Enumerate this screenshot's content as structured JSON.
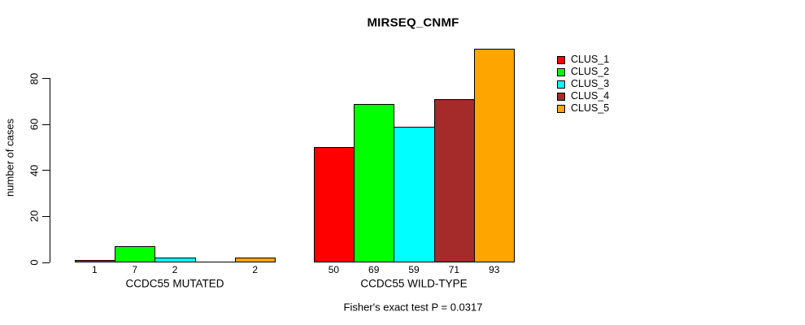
{
  "chart_data": {
    "type": "bar",
    "title": "MIRSEQ_CNMF",
    "ylabel": "number of cases",
    "xlabel": "",
    "annotation": "Fisher's exact test P = 0.0317",
    "yticks": [
      0,
      20,
      40,
      60,
      80
    ],
    "ylim": [
      0,
      93
    ],
    "grid": false,
    "legend_position": "right",
    "background": "#ffffff",
    "axis_color": "#000000",
    "categories": [
      "CCDC55 MUTATED",
      "CCDC55 WILD-TYPE"
    ],
    "series": [
      {
        "name": "CLUS_1",
        "color": "#FF0000",
        "values": [
          1,
          50
        ]
      },
      {
        "name": "CLUS_2",
        "color": "#00FF00",
        "values": [
          7,
          69
        ]
      },
      {
        "name": "CLUS_3",
        "color": "#00FFFF",
        "values": [
          2,
          59
        ]
      },
      {
        "name": "CLUS_4",
        "color": "#A52A2A",
        "values": [
          0,
          71
        ]
      },
      {
        "name": "CLUS_5",
        "color": "#FFA500",
        "values": [
          2,
          93
        ]
      }
    ],
    "bar_value_labels": [
      [
        "1",
        "7",
        "2",
        "",
        "2"
      ],
      [
        "50",
        "69",
        "59",
        "71",
        "93"
      ]
    ]
  }
}
